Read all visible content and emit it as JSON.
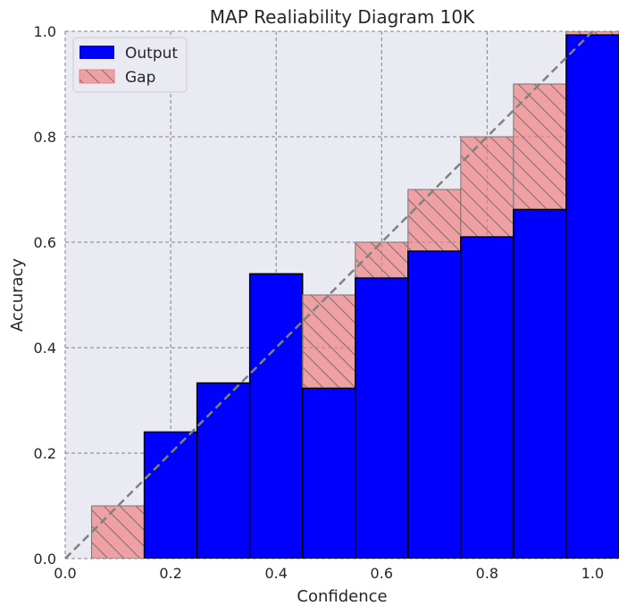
{
  "chart_data": {
    "type": "bar",
    "title": "MAP Realiability Diagram 10K",
    "xlabel": "Confidence",
    "ylabel": "Accuracy",
    "xlim": [
      0.0,
      1.05
    ],
    "ylim": [
      0.0,
      1.0
    ],
    "x_ticks": [
      "0.0",
      "0.2",
      "0.4",
      "0.6",
      "0.8",
      "1.0"
    ],
    "y_ticks": [
      "0.0",
      "0.2",
      "0.4",
      "0.6",
      "0.8",
      "1.0"
    ],
    "grid": true,
    "legend_position": "top-left",
    "bin_width": 0.1,
    "bin_centers": [
      0.1,
      0.2,
      0.3,
      0.4,
      0.5,
      0.6,
      0.7,
      0.8,
      0.9,
      1.0
    ],
    "series": [
      {
        "name": "Output",
        "color": "#0000ff",
        "values": [
          0.0,
          0.24,
          0.333,
          0.54,
          0.323,
          0.532,
          0.583,
          0.61,
          0.662,
          0.993
        ]
      },
      {
        "name": "Gap",
        "color": "#f08080",
        "values": [
          0.1,
          0.2,
          0.3,
          0.4,
          0.5,
          0.6,
          0.7,
          0.8,
          0.9,
          1.0
        ]
      }
    ],
    "reference_line": {
      "style": "dashed",
      "color": "#808080",
      "from": [
        0.0,
        0.0
      ],
      "to": [
        1.0,
        1.0
      ]
    }
  }
}
